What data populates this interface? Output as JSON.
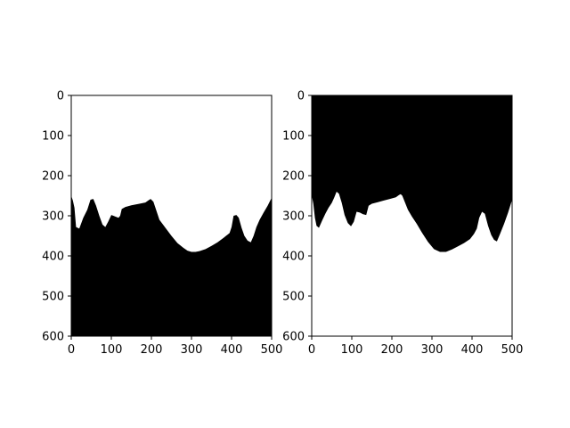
{
  "chart_data": [
    {
      "type": "image",
      "title": "",
      "xlabel": "",
      "ylabel": "",
      "xlim": [
        0,
        500
      ],
      "ylim": [
        600,
        0
      ],
      "xticks": [
        0,
        100,
        200,
        300,
        400,
        500
      ],
      "yticks": [
        0,
        100,
        200,
        300,
        400,
        500,
        600
      ],
      "fill_color": "#000000",
      "background_color": "#ffffff",
      "filled_region": "below-boundary",
      "boundary": {
        "x": [
          0,
          4,
          8,
          12,
          20,
          30,
          40,
          48,
          55,
          62,
          70,
          78,
          85,
          92,
          100,
          110,
          118,
          122,
          126,
          135,
          150,
          170,
          185,
          192,
          198,
          205,
          210,
          220,
          235,
          250,
          265,
          280,
          290,
          300,
          310,
          320,
          335,
          350,
          365,
          380,
          395,
          400,
          405,
          412,
          418,
          425,
          432,
          440,
          448,
          455,
          462,
          470,
          480,
          490,
          500
        ],
        "y": [
          250,
          262,
          280,
          328,
          332,
          305,
          285,
          260,
          258,
          275,
          300,
          322,
          328,
          315,
          298,
          302,
          305,
          300,
          283,
          278,
          274,
          270,
          267,
          262,
          258,
          265,
          280,
          310,
          330,
          350,
          368,
          380,
          387,
          390,
          390,
          388,
          383,
          375,
          366,
          355,
          343,
          328,
          300,
          298,
          305,
          330,
          350,
          362,
          366,
          350,
          328,
          310,
          292,
          275,
          255
        ]
      }
    },
    {
      "type": "image",
      "title": "",
      "xlabel": "",
      "ylabel": "",
      "xlim": [
        0,
        500
      ],
      "ylim": [
        600,
        0
      ],
      "xticks": [
        0,
        100,
        200,
        300,
        400,
        500
      ],
      "yticks": [
        0,
        100,
        200,
        300,
        400,
        500,
        600
      ],
      "fill_color": "#000000",
      "background_color": "#ffffff",
      "filled_region": "above-boundary",
      "boundary": {
        "x": [
          0,
          4,
          8,
          12,
          18,
          26,
          34,
          42,
          50,
          56,
          62,
          68,
          75,
          82,
          90,
          98,
          105,
          112,
          120,
          128,
          136,
          142,
          150,
          165,
          180,
          195,
          210,
          218,
          222,
          226,
          232,
          240,
          250,
          262,
          275,
          290,
          305,
          320,
          335,
          350,
          365,
          380,
          395,
          405,
          412,
          418,
          425,
          432,
          440,
          448,
          455,
          462,
          470,
          480,
          490,
          500
        ],
        "y": [
          248,
          270,
          305,
          325,
          330,
          312,
          295,
          280,
          268,
          255,
          240,
          245,
          268,
          298,
          318,
          326,
          315,
          290,
          292,
          296,
          298,
          275,
          270,
          266,
          262,
          258,
          254,
          248,
          246,
          250,
          265,
          285,
          302,
          320,
          342,
          365,
          383,
          390,
          390,
          384,
          376,
          368,
          358,
          345,
          332,
          305,
          290,
          295,
          325,
          348,
          360,
          364,
          345,
          320,
          292,
          260
        ]
      }
    }
  ]
}
